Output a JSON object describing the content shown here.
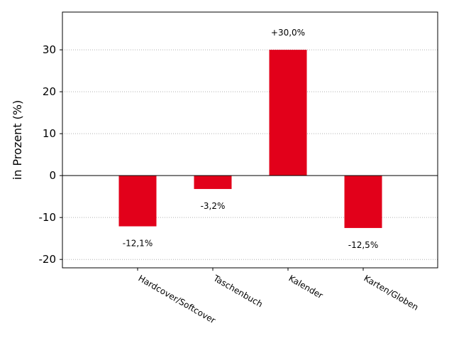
{
  "chart_data": {
    "type": "bar",
    "categories": [
      "Hardcover/Softcover",
      "Taschenbuch",
      "Kalender",
      "Karten/Globen"
    ],
    "values": [
      -12.1,
      -3.2,
      30.0,
      -12.5
    ],
    "data_labels": [
      "-12,1%",
      "-3,2%",
      "+30,0%",
      "-12,5%"
    ],
    "ylabel": "in Prozent (%)",
    "xlabel": "",
    "ylim": [
      -22,
      39
    ],
    "yticks": [
      -20,
      -10,
      0,
      10,
      20,
      30
    ],
    "ytick_labels": [
      "-20",
      "-10",
      "0",
      "10",
      "20",
      "30"
    ],
    "grid": "horizontal dotted",
    "bar_color": "#e2001a"
  }
}
